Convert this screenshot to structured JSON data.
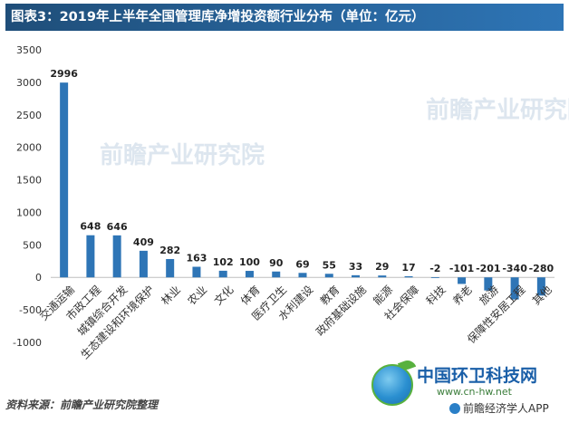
{
  "title": "图表3：2019年上半年全国管理库净增投资额行业分布（单位：亿元）",
  "source": "资料来源：前瞻产业研究院整理",
  "watermark": "前瞻产业研究院",
  "logo": {
    "name": "中国环卫科技网",
    "url": "www.cn-hw.net",
    "app_label": "前瞻经济学人APP"
  },
  "colors": {
    "bar": "#2e75b6",
    "axis": "#bfbfbf",
    "title_bg": "#1f4e79"
  },
  "chart_data": {
    "type": "bar",
    "categories": [
      "交通运输",
      "市政工程",
      "城镇综合开发",
      "生态建设和环境保护",
      "林业",
      "农业",
      "文化",
      "体育",
      "医疗卫生",
      "水利建设",
      "教育",
      "政府基础设施",
      "能源",
      "社会保障",
      "科技",
      "养老",
      "旅游",
      "保障性安居工程",
      "其他"
    ],
    "values": [
      2996,
      648,
      646,
      409,
      282,
      163,
      102,
      100,
      90,
      69,
      55,
      33,
      29,
      17,
      -2,
      -101,
      -201,
      -340,
      -280
    ],
    "data_labels": [
      "2996",
      "648",
      "646",
      "409",
      "282",
      "163",
      "102",
      "100",
      "90",
      "69",
      "55",
      "33",
      "29",
      "17",
      "-2",
      "-101",
      "-201",
      "-340",
      "-280"
    ],
    "ylim": [
      -1000,
      3500
    ],
    "yticks": [
      3500,
      3000,
      2500,
      2000,
      1500,
      1000,
      500,
      0,
      -500,
      -1000
    ],
    "grid": false,
    "legend": "none"
  }
}
